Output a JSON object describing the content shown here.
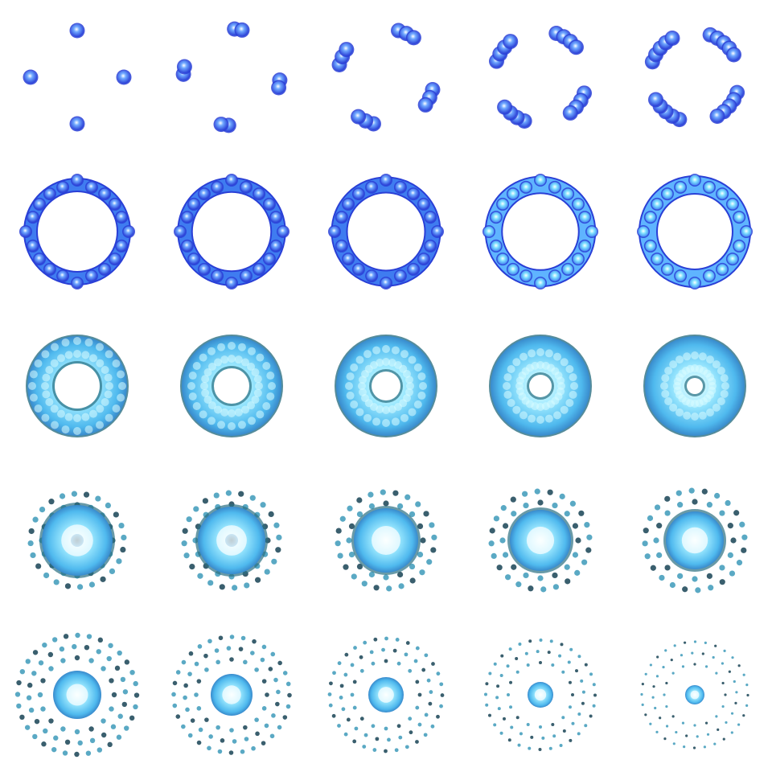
{
  "sprite_sheet": {
    "columns": 5,
    "rows": 5,
    "background": "#ffffff",
    "colors": {
      "deep_blue": "#2a3fd6",
      "mid_blue": "#3f7cf0",
      "cyan": "#5fd4ff",
      "glow": "#d9fbff",
      "teal_dark": "#2a6f82",
      "slate_particle": "#3a5f6e"
    },
    "frames": [
      {
        "index": 1,
        "stage": "four-orbs"
      },
      {
        "index": 2,
        "stage": "orb-pairs"
      },
      {
        "index": 3,
        "stage": "orb-triples"
      },
      {
        "index": 4,
        "stage": "orb-arcs"
      },
      {
        "index": 5,
        "stage": "ring-segments"
      },
      {
        "index": 6,
        "stage": "ring-closed"
      },
      {
        "index": 7,
        "stage": "ring-closed"
      },
      {
        "index": 8,
        "stage": "ring-closed"
      },
      {
        "index": 9,
        "stage": "ring-glow"
      },
      {
        "index": 10,
        "stage": "ring-glow"
      },
      {
        "index": 11,
        "stage": "ring-thick"
      },
      {
        "index": 12,
        "stage": "ring-thick"
      },
      {
        "index": 13,
        "stage": "ring-thick"
      },
      {
        "index": 14,
        "stage": "ring-thick"
      },
      {
        "index": 15,
        "stage": "ring-thick"
      },
      {
        "index": 16,
        "stage": "core-sparks"
      },
      {
        "index": 17,
        "stage": "core-sparks"
      },
      {
        "index": 18,
        "stage": "core-sparks"
      },
      {
        "index": 19,
        "stage": "core-sparks"
      },
      {
        "index": 20,
        "stage": "core-sparks"
      },
      {
        "index": 21,
        "stage": "core-dissipate"
      },
      {
        "index": 22,
        "stage": "core-dissipate"
      },
      {
        "index": 23,
        "stage": "core-dissipate"
      },
      {
        "index": 24,
        "stage": "core-dissipate"
      },
      {
        "index": 25,
        "stage": "core-dissipate"
      }
    ]
  }
}
